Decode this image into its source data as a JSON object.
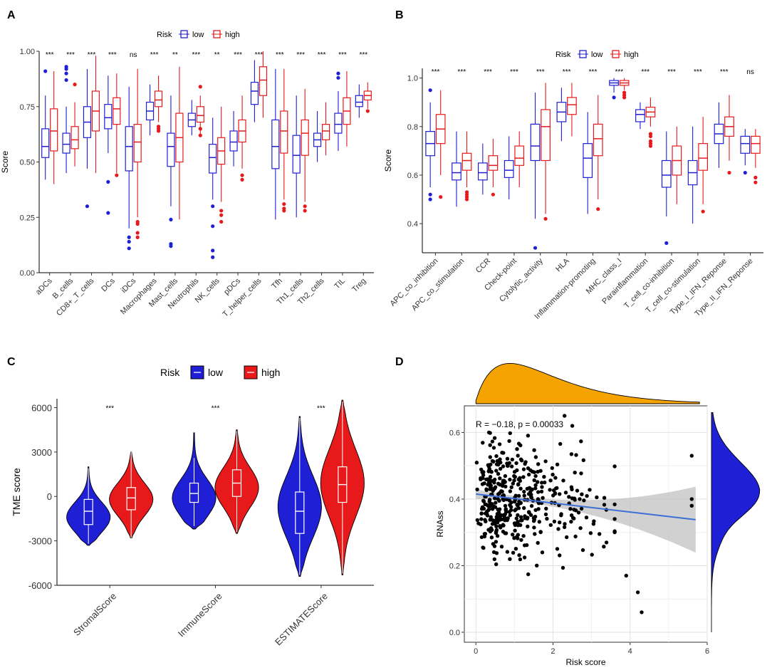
{
  "panels": {
    "a": "A",
    "b": "B",
    "c": "C",
    "d": "D"
  },
  "colors": {
    "low": "#1f1fd6",
    "high": "#e8191a",
    "density_x": "#f5a300",
    "fit": "#3b6fd8",
    "band": "#bdbdbd"
  },
  "chart_data": [
    {
      "type": "box",
      "panel": "A",
      "title": "",
      "legend": {
        "title": "Risk",
        "low": "low",
        "high": "high",
        "position": "top"
      },
      "ylabel": "Score",
      "xlabel": "",
      "ylim": [
        0,
        1.0
      ],
      "yticks": [
        "0.00",
        "0.25",
        "0.50",
        "0.75",
        "1.00"
      ],
      "ytick_values": [
        0,
        0.25,
        0.5,
        0.75,
        1.0
      ],
      "categories": [
        "aDCs",
        "B_cells",
        "CD8+_T_cells",
        "DCs",
        "iDCs",
        "Macrophages",
        "Mast_cells",
        "Neutrophils",
        "NK_cells",
        "pDCs",
        "T_helper_cells",
        "Tfh",
        "Th1_cells",
        "Th2_cells",
        "TIL",
        "Treg"
      ],
      "significance": [
        "***",
        "***",
        "***",
        "***",
        "ns",
        "***",
        "**",
        "***",
        "**",
        "***",
        "***",
        "***",
        "***",
        "***",
        "***",
        "***"
      ],
      "series": [
        {
          "name": "low",
          "boxes": [
            {
              "q1": 0.52,
              "med": 0.57,
              "q3": 0.65,
              "lo": 0.42,
              "hi": 0.8,
              "out": [
                0.91
              ]
            },
            {
              "q1": 0.54,
              "med": 0.58,
              "q3": 0.63,
              "lo": 0.45,
              "hi": 0.75,
              "out": [
                0.9,
                0.92,
                0.93,
                0.87
              ]
            },
            {
              "q1": 0.61,
              "med": 0.68,
              "q3": 0.75,
              "lo": 0.47,
              "hi": 0.92,
              "out": [
                0.3
              ]
            },
            {
              "q1": 0.65,
              "med": 0.7,
              "q3": 0.76,
              "lo": 0.54,
              "hi": 0.89,
              "out": [
                0.41,
                0.27
              ]
            },
            {
              "q1": 0.46,
              "med": 0.57,
              "q3": 0.66,
              "lo": 0.2,
              "hi": 0.84,
              "out": [
                0.16,
                0.14,
                0.11
              ]
            },
            {
              "q1": 0.69,
              "med": 0.73,
              "q3": 0.77,
              "lo": 0.62,
              "hi": 0.85,
              "out": []
            },
            {
              "q1": 0.48,
              "med": 0.57,
              "q3": 0.63,
              "lo": 0.3,
              "hi": 0.8,
              "out": [
                0.24,
                0.13,
                0.12
              ]
            },
            {
              "q1": 0.66,
              "med": 0.69,
              "q3": 0.72,
              "lo": 0.62,
              "hi": 0.78,
              "out": []
            },
            {
              "q1": 0.45,
              "med": 0.52,
              "q3": 0.58,
              "lo": 0.33,
              "hi": 0.7,
              "out": [
                0.3,
                0.21,
                0.1,
                0.07
              ]
            },
            {
              "q1": 0.55,
              "med": 0.59,
              "q3": 0.64,
              "lo": 0.48,
              "hi": 0.73,
              "out": []
            },
            {
              "q1": 0.76,
              "med": 0.82,
              "q3": 0.86,
              "lo": 0.68,
              "hi": 0.96,
              "out": []
            },
            {
              "q1": 0.47,
              "med": 0.57,
              "q3": 0.69,
              "lo": 0.24,
              "hi": 0.92,
              "out": []
            },
            {
              "q1": 0.45,
              "med": 0.53,
              "q3": 0.62,
              "lo": 0.25,
              "hi": 0.8,
              "out": []
            },
            {
              "q1": 0.57,
              "med": 0.6,
              "q3": 0.63,
              "lo": 0.5,
              "hi": 0.73,
              "out": []
            },
            {
              "q1": 0.63,
              "med": 0.67,
              "q3": 0.72,
              "lo": 0.55,
              "hi": 0.82,
              "out": [
                0.9,
                0.88
              ]
            },
            {
              "q1": 0.75,
              "med": 0.77,
              "q3": 0.8,
              "lo": 0.7,
              "hi": 0.85,
              "out": []
            }
          ]
        },
        {
          "name": "high",
          "boxes": [
            {
              "q1": 0.55,
              "med": 0.64,
              "q3": 0.74,
              "lo": 0.4,
              "hi": 0.91,
              "out": []
            },
            {
              "q1": 0.56,
              "med": 0.6,
              "q3": 0.66,
              "lo": 0.48,
              "hi": 0.77,
              "out": [
                0.85
              ]
            },
            {
              "q1": 0.64,
              "med": 0.73,
              "q3": 0.82,
              "lo": 0.45,
              "hi": 0.98,
              "out": []
            },
            {
              "q1": 0.67,
              "med": 0.74,
              "q3": 0.79,
              "lo": 0.45,
              "hi": 0.9,
              "out": [
                0.44
              ]
            },
            {
              "q1": 0.5,
              "med": 0.59,
              "q3": 0.67,
              "lo": 0.25,
              "hi": 0.92,
              "out": [
                0.23,
                0.22,
                0.18,
                0.16
              ]
            },
            {
              "q1": 0.75,
              "med": 0.78,
              "q3": 0.82,
              "lo": 0.68,
              "hi": 0.89,
              "out": [
                0.66,
                0.65,
                0.64
              ]
            },
            {
              "q1": 0.5,
              "med": 0.61,
              "q3": 0.72,
              "lo": 0.24,
              "hi": 0.93,
              "out": []
            },
            {
              "q1": 0.68,
              "med": 0.71,
              "q3": 0.75,
              "lo": 0.62,
              "hi": 0.8,
              "out": [
                0.84,
                0.65,
                0.62
              ]
            },
            {
              "q1": 0.49,
              "med": 0.55,
              "q3": 0.61,
              "lo": 0.32,
              "hi": 0.75,
              "out": [
                0.28,
                0.26,
                0.23
              ]
            },
            {
              "q1": 0.59,
              "med": 0.64,
              "q3": 0.69,
              "lo": 0.47,
              "hi": 0.8,
              "out": [
                0.44,
                0.42
              ]
            },
            {
              "q1": 0.8,
              "med": 0.87,
              "q3": 0.93,
              "lo": 0.7,
              "hi": 1.0,
              "out": []
            },
            {
              "q1": 0.54,
              "med": 0.64,
              "q3": 0.73,
              "lo": 0.33,
              "hi": 0.92,
              "out": [
                0.31,
                0.29,
                0.28
              ]
            },
            {
              "q1": 0.53,
              "med": 0.63,
              "q3": 0.69,
              "lo": 0.32,
              "hi": 0.83,
              "out": [
                0.3,
                0.28
              ]
            },
            {
              "q1": 0.6,
              "med": 0.64,
              "q3": 0.67,
              "lo": 0.53,
              "hi": 0.77,
              "out": []
            },
            {
              "q1": 0.67,
              "med": 0.73,
              "q3": 0.79,
              "lo": 0.57,
              "hi": 0.91,
              "out": []
            },
            {
              "q1": 0.78,
              "med": 0.8,
              "q3": 0.82,
              "lo": 0.74,
              "hi": 0.86,
              "out": [
                0.73
              ]
            }
          ]
        }
      ]
    },
    {
      "type": "box",
      "panel": "B",
      "title": "",
      "legend": {
        "title": "Risk",
        "low": "low",
        "high": "high",
        "position": "top"
      },
      "ylabel": "Score",
      "xlabel": "",
      "ylim": [
        0.28,
        1.04
      ],
      "yticks": [
        "0.4",
        "0.6",
        "0.8",
        "1.0"
      ],
      "ytick_values": [
        0.4,
        0.6,
        0.8,
        1.0
      ],
      "categories": [
        "APC_co_inhibition",
        "APC_co_stimulation",
        "CCR",
        "Check-point",
        "Cytolytic_activity",
        "HLA",
        "Inflammation-promoting",
        "MHC_class_I",
        "Parainflammation",
        "T_cell_co-inhibition",
        "T_cell_co-stimulation",
        "Type_I_IFN_Reponse",
        "Type_II_IFN_Reponse"
      ],
      "significance": [
        "***",
        "***",
        "***",
        "***",
        "***",
        "***",
        "***",
        "***",
        "***",
        "***",
        "***",
        "***",
        "ns"
      ],
      "series": [
        {
          "name": "low",
          "boxes": [
            {
              "q1": 0.68,
              "med": 0.73,
              "q3": 0.78,
              "lo": 0.55,
              "hi": 0.9,
              "out": [
                0.95,
                0.52,
                0.5
              ]
            },
            {
              "q1": 0.58,
              "med": 0.61,
              "q3": 0.65,
              "lo": 0.47,
              "hi": 0.78,
              "out": []
            },
            {
              "q1": 0.58,
              "med": 0.61,
              "q3": 0.65,
              "lo": 0.52,
              "hi": 0.73,
              "out": []
            },
            {
              "q1": 0.59,
              "med": 0.62,
              "q3": 0.66,
              "lo": 0.5,
              "hi": 0.76,
              "out": []
            },
            {
              "q1": 0.66,
              "med": 0.72,
              "q3": 0.81,
              "lo": 0.42,
              "hi": 0.94,
              "out": [
                0.3
              ]
            },
            {
              "q1": 0.82,
              "med": 0.86,
              "q3": 0.9,
              "lo": 0.74,
              "hi": 0.96,
              "out": []
            },
            {
              "q1": 0.59,
              "med": 0.67,
              "q3": 0.73,
              "lo": 0.44,
              "hi": 0.86,
              "out": []
            },
            {
              "q1": 0.97,
              "med": 0.98,
              "q3": 0.99,
              "lo": 0.94,
              "hi": 1.0,
              "out": [
                0.92
              ]
            },
            {
              "q1": 0.82,
              "med": 0.85,
              "q3": 0.87,
              "lo": 0.79,
              "hi": 0.9,
              "out": []
            },
            {
              "q1": 0.55,
              "med": 0.6,
              "q3": 0.66,
              "lo": 0.43,
              "hi": 0.78,
              "out": [
                0.32
              ]
            },
            {
              "q1": 0.56,
              "med": 0.61,
              "q3": 0.66,
              "lo": 0.4,
              "hi": 0.8,
              "out": []
            },
            {
              "q1": 0.73,
              "med": 0.77,
              "q3": 0.81,
              "lo": 0.63,
              "hi": 0.9,
              "out": []
            },
            {
              "q1": 0.69,
              "med": 0.73,
              "q3": 0.76,
              "lo": 0.64,
              "hi": 0.79,
              "out": [
                0.61
              ]
            }
          ]
        },
        {
          "name": "high",
          "boxes": [
            {
              "q1": 0.73,
              "med": 0.79,
              "q3": 0.85,
              "lo": 0.6,
              "hi": 0.95,
              "out": [
                0.51
              ]
            },
            {
              "q1": 0.62,
              "med": 0.66,
              "q3": 0.69,
              "lo": 0.55,
              "hi": 0.78,
              "out": [
                0.53,
                0.52,
                0.51,
                0.5
              ]
            },
            {
              "q1": 0.62,
              "med": 0.64,
              "q3": 0.68,
              "lo": 0.55,
              "hi": 0.75,
              "out": [
                0.52
              ]
            },
            {
              "q1": 0.64,
              "med": 0.67,
              "q3": 0.72,
              "lo": 0.55,
              "hi": 0.78,
              "out": []
            },
            {
              "q1": 0.66,
              "med": 0.8,
              "q3": 0.87,
              "lo": 0.44,
              "hi": 0.98,
              "out": [
                0.42
              ]
            },
            {
              "q1": 0.85,
              "med": 0.89,
              "q3": 0.92,
              "lo": 0.76,
              "hi": 0.98,
              "out": []
            },
            {
              "q1": 0.68,
              "med": 0.75,
              "q3": 0.81,
              "lo": 0.5,
              "hi": 0.93,
              "out": [
                0.46
              ]
            },
            {
              "q1": 0.97,
              "med": 0.98,
              "q3": 0.99,
              "lo": 0.95,
              "hi": 1.0,
              "out": [
                0.93,
                0.92,
                0.94
              ]
            },
            {
              "q1": 0.84,
              "med": 0.86,
              "q3": 0.88,
              "lo": 0.8,
              "hi": 0.92,
              "out": [
                0.77,
                0.76,
                0.74,
                0.73,
                0.72
              ]
            },
            {
              "q1": 0.6,
              "med": 0.66,
              "q3": 0.72,
              "lo": 0.48,
              "hi": 0.8,
              "out": []
            },
            {
              "q1": 0.62,
              "med": 0.67,
              "q3": 0.73,
              "lo": 0.48,
              "hi": 0.84,
              "out": [
                0.45
              ]
            },
            {
              "q1": 0.76,
              "med": 0.8,
              "q3": 0.84,
              "lo": 0.66,
              "hi": 0.93,
              "out": [
                0.61
              ]
            },
            {
              "q1": 0.69,
              "med": 0.73,
              "q3": 0.76,
              "lo": 0.63,
              "hi": 0.79,
              "out": [
                0.59,
                0.57
              ]
            }
          ]
        }
      ]
    },
    {
      "type": "violin",
      "panel": "C",
      "title": "",
      "legend": {
        "title": "Risk",
        "low": "low",
        "high": "high",
        "position": "top"
      },
      "ylabel": "TME score",
      "xlabel": "",
      "ylim": [
        -6000,
        6600
      ],
      "yticks": [
        "-6000",
        "-3000",
        "0",
        "3000",
        "6000"
      ],
      "ytick_values": [
        -6000,
        -3000,
        0,
        3000,
        6000
      ],
      "categories": [
        "StromalScore",
        "ImmuneScore",
        "ESTIMATEScore"
      ],
      "significance": [
        "***",
        "***",
        "***"
      ],
      "series": [
        {
          "name": "low",
          "violins": [
            {
              "min": -3300,
              "max": 2000,
              "q1": -1900,
              "med": -1000,
              "q3": -200,
              "lo": -3200,
              "hi": 1900,
              "mode": -1400
            },
            {
              "min": -2200,
              "max": 4300,
              "q1": -400,
              "med": 200,
              "q3": 900,
              "lo": -2000,
              "hi": 2600,
              "mode": -100
            },
            {
              "min": -5400,
              "max": 5400,
              "q1": -2500,
              "med": -1000,
              "q3": 300,
              "lo": -5300,
              "hi": 5300,
              "mode": -700
            }
          ]
        },
        {
          "name": "high",
          "violins": [
            {
              "min": -2800,
              "max": 3000,
              "q1": -900,
              "med": -100,
              "q3": 600,
              "lo": -2800,
              "hi": 3000,
              "mode": -200
            },
            {
              "min": -2500,
              "max": 4500,
              "q1": 0,
              "med": 900,
              "q3": 1800,
              "lo": -2400,
              "hi": 4400,
              "mode": 600
            },
            {
              "min": -5300,
              "max": 6500,
              "q1": -400,
              "med": 800,
              "q3": 2000,
              "lo": -5200,
              "hi": 6400,
              "mode": 900
            }
          ]
        }
      ]
    },
    {
      "type": "scatter",
      "panel": "D",
      "title": "",
      "annotation": "R = −0.18, p = 0.00033",
      "xlabel": "Risk score",
      "ylabel": "RNAss",
      "xlim": [
        -0.3,
        6.0
      ],
      "ylim": [
        -0.03,
        0.68
      ],
      "xticks": [
        "0",
        "2",
        "4",
        "6"
      ],
      "xtick_values": [
        0,
        2,
        4,
        6
      ],
      "yticks": [
        "0.0",
        "0.2",
        "0.4",
        "0.6"
      ],
      "ytick_values": [
        0,
        0.2,
        0.4,
        0.6
      ],
      "fit": {
        "intercept": 0.415,
        "slope": -0.0135,
        "x_range": [
          0,
          5.7
        ]
      },
      "points_note": "approx. 440 samples, dense cluster at Risk score 0–3, RNAss 0.15–0.6",
      "outliers": [
        [
          2.3,
          0.65
        ],
        [
          2.5,
          0.62
        ],
        [
          3.9,
          0.17
        ],
        [
          4.2,
          0.12
        ],
        [
          4.3,
          0.06
        ],
        [
          5.6,
          0.53
        ],
        [
          5.6,
          0.4
        ],
        [
          5.6,
          0.38
        ]
      ]
    }
  ]
}
